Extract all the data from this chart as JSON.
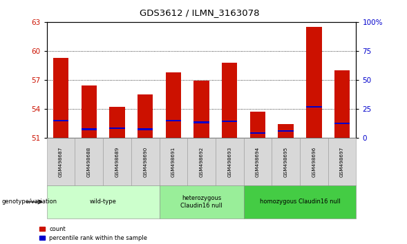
{
  "title": "GDS3612 / ILMN_3163078",
  "samples": [
    "GSM498687",
    "GSM498688",
    "GSM498689",
    "GSM498690",
    "GSM498691",
    "GSM498692",
    "GSM498693",
    "GSM498694",
    "GSM498695",
    "GSM498696",
    "GSM498697"
  ],
  "red_values": [
    59.3,
    56.4,
    54.2,
    55.5,
    57.8,
    56.9,
    58.8,
    53.7,
    52.4,
    62.5,
    58.0
  ],
  "blue_values": [
    52.8,
    51.9,
    52.0,
    51.9,
    52.8,
    52.6,
    52.7,
    51.5,
    51.7,
    54.2,
    52.5
  ],
  "ylim_left": [
    51,
    63
  ],
  "ylim_right": [
    0,
    100
  ],
  "yticks_left": [
    51,
    54,
    57,
    60,
    63
  ],
  "yticks_right": [
    0,
    25,
    50,
    75,
    100
  ],
  "groups": [
    {
      "label": "wild-type",
      "indices": [
        0,
        1,
        2,
        3
      ],
      "color": "#ccffcc"
    },
    {
      "label": "heterozygous\nClaudin16 null",
      "indices": [
        4,
        5,
        6
      ],
      "color": "#99ee99"
    },
    {
      "label": "homozygous Claudin16 null",
      "indices": [
        7,
        8,
        9,
        10
      ],
      "color": "#44cc44"
    }
  ],
  "bar_color": "#cc1100",
  "blue_color": "#0000cc",
  "bar_width": 0.55,
  "legend_count_label": "count",
  "legend_pct_label": "percentile rank within the sample"
}
